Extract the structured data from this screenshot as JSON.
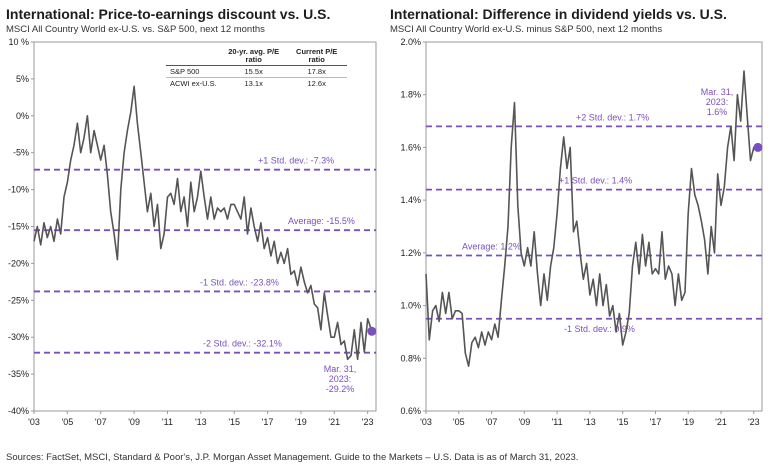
{
  "chart_data": [
    {
      "type": "line",
      "title": "International: Price-to-earnings discount vs. U.S.",
      "subtitle": "MSCI All Country World ex-U.S. vs. S&P 500, next 12 months",
      "ylim": [
        -40,
        10
      ],
      "yticks": [
        10,
        5,
        0,
        -5,
        -10,
        -15,
        -20,
        -25,
        -30,
        -35,
        -40
      ],
      "ytick_labels": [
        "10 %",
        "5%",
        "0%",
        "-5%",
        "-10%",
        "-15%",
        "-20%",
        "-25%",
        "-30%",
        "-35%",
        "-40%"
      ],
      "xlim": [
        2003,
        2023.5
      ],
      "xticks": [
        2003,
        2005,
        2007,
        2009,
        2011,
        2013,
        2015,
        2017,
        2019,
        2021,
        2023
      ],
      "xtick_labels": [
        "'03",
        "'05",
        "'07",
        "'09",
        "'11",
        "'13",
        "'15",
        "'17",
        "'19",
        "'21",
        "'23"
      ],
      "line_color": "#555555",
      "ref_color": "#7a4fc0",
      "reference_lines": [
        {
          "label": "+1 Std. dev.: -7.3%",
          "value": -7.3
        },
        {
          "label": "Average: -15.5%",
          "value": -15.5
        },
        {
          "label": "-1 Std. dev.: -23.8%",
          "value": -23.8
        },
        {
          "label": "-2 Std. dev.: -32.1%",
          "value": -32.1
        }
      ],
      "annotation": {
        "lines": [
          "Mar. 31,",
          "2023:",
          "-29.2%"
        ],
        "x": 2023.25,
        "y": -29.2
      },
      "table": {
        "headers": [
          "",
          "20-yr. avg. P/E ratio",
          "Current P/E ratio"
        ],
        "rows": [
          [
            "S&P 500",
            "15.5x",
            "17.8x"
          ],
          [
            "ACWI ex-U.S.",
            "13.1x",
            "12.6x"
          ]
        ]
      },
      "series": [
        {
          "x": [
            2003.0,
            2003.2,
            2003.4,
            2003.6,
            2003.8,
            2004.0,
            2004.2,
            2004.4,
            2004.6,
            2004.8,
            2005.0,
            2005.2,
            2005.4,
            2005.6,
            2005.8,
            2006.0,
            2006.2,
            2006.4,
            2006.6,
            2006.8,
            2007.0,
            2007.2,
            2007.4,
            2007.6,
            2007.8,
            2008.0,
            2008.2,
            2008.4,
            2008.6,
            2008.8,
            2009.0,
            2009.2,
            2009.4,
            2009.6,
            2009.8,
            2010.0,
            2010.2,
            2010.4,
            2010.6,
            2010.8,
            2011.0,
            2011.2,
            2011.4,
            2011.6,
            2011.8,
            2012.0,
            2012.2,
            2012.4,
            2012.6,
            2012.8,
            2013.0,
            2013.2,
            2013.4,
            2013.6,
            2013.8,
            2014.0,
            2014.2,
            2014.4,
            2014.6,
            2014.8,
            2015.0,
            2015.2,
            2015.4,
            2015.6,
            2015.8,
            2016.0,
            2016.2,
            2016.4,
            2016.6,
            2016.8,
            2017.0,
            2017.2,
            2017.4,
            2017.6,
            2017.8,
            2018.0,
            2018.2,
            2018.4,
            2018.6,
            2018.8,
            2019.0,
            2019.2,
            2019.4,
            2019.6,
            2019.8,
            2020.0,
            2020.2,
            2020.4,
            2020.6,
            2020.8,
            2021.0,
            2021.2,
            2021.4,
            2021.6,
            2021.8,
            2022.0,
            2022.2,
            2022.4,
            2022.6,
            2022.8,
            2023.0,
            2023.25
          ],
          "y": [
            -17,
            -15,
            -17.5,
            -14.5,
            -16.5,
            -15,
            -17,
            -14,
            -16,
            -11,
            -9,
            -6,
            -4,
            -1,
            -5,
            -3,
            0,
            -5,
            -2,
            -4,
            -6,
            -4,
            -8,
            -13,
            -16,
            -19.5,
            -10,
            -5,
            -2,
            0.5,
            4,
            -1,
            -5,
            -9,
            -13,
            -10.5,
            -15,
            -12,
            -18,
            -16,
            -11,
            -10.5,
            -12,
            -8.5,
            -13,
            -11,
            -15,
            -9,
            -13,
            -11,
            -7.5,
            -11,
            -14,
            -11,
            -14,
            -12.5,
            -13,
            -12.5,
            -14,
            -12,
            -12,
            -13,
            -14,
            -11,
            -16,
            -12.5,
            -15,
            -17,
            -14.5,
            -18,
            -16.5,
            -19,
            -17,
            -20,
            -18.5,
            -20,
            -18,
            -21.5,
            -21,
            -23,
            -20.5,
            -22.5,
            -24,
            -23,
            -25.5,
            -26,
            -29,
            -24,
            -27,
            -30,
            -30,
            -28,
            -31,
            -30.5,
            -33,
            -32.5,
            -29,
            -33,
            -28,
            -32,
            -27.5,
            -29.2
          ]
        }
      ]
    },
    {
      "type": "line",
      "title": "International: Difference in dividend yields vs. U.S.",
      "subtitle": "MSCI All Country World ex-U.S. minus S&P 500, next 12 months",
      "ylim": [
        0.6,
        2.0
      ],
      "yticks": [
        2.0,
        1.8,
        1.6,
        1.4,
        1.2,
        1.0,
        0.8,
        0.6
      ],
      "ytick_labels": [
        "2.0%",
        "1.8%",
        "1.6%",
        "1.4%",
        "1.2%",
        "1.0%",
        "0.8%",
        "0.6%"
      ],
      "xlim": [
        2003,
        2023.5
      ],
      "xticks": [
        2003,
        2005,
        2007,
        2009,
        2011,
        2013,
        2015,
        2017,
        2019,
        2021,
        2023
      ],
      "xtick_labels": [
        "'03",
        "'05",
        "'07",
        "'09",
        "'11",
        "'13",
        "'15",
        "'17",
        "'19",
        "'21",
        "'23"
      ],
      "line_color": "#555555",
      "ref_color": "#7a4fc0",
      "reference_lines": [
        {
          "label": "+2 Std. dev.: 1.7%",
          "value": 1.68
        },
        {
          "label": "+1 Std. dev.: 1.4%",
          "value": 1.44
        },
        {
          "label": "Average: 1.2%",
          "value": 1.19
        },
        {
          "label": "-1 Std. dev.: 0.9%",
          "value": 0.95
        }
      ],
      "annotation": {
        "lines": [
          "Mar. 31,",
          "2023:",
          "1.6%"
        ],
        "x": 2023.25,
        "y": 1.6
      },
      "series": [
        {
          "x": [
            2003.0,
            2003.2,
            2003.4,
            2003.6,
            2003.8,
            2004.0,
            2004.2,
            2004.4,
            2004.6,
            2004.8,
            2005.0,
            2005.2,
            2005.4,
            2005.6,
            2005.8,
            2006.0,
            2006.2,
            2006.4,
            2006.6,
            2006.8,
            2007.0,
            2007.2,
            2007.4,
            2007.6,
            2007.8,
            2008.0,
            2008.2,
            2008.4,
            2008.6,
            2008.8,
            2009.0,
            2009.2,
            2009.4,
            2009.6,
            2009.8,
            2010.0,
            2010.2,
            2010.4,
            2010.6,
            2010.8,
            2011.0,
            2011.2,
            2011.4,
            2011.6,
            2011.8,
            2012.0,
            2012.2,
            2012.4,
            2012.6,
            2012.8,
            2013.0,
            2013.2,
            2013.4,
            2013.6,
            2013.8,
            2014.0,
            2014.2,
            2014.4,
            2014.6,
            2014.8,
            2015.0,
            2015.2,
            2015.4,
            2015.6,
            2015.8,
            2016.0,
            2016.2,
            2016.4,
            2016.6,
            2016.8,
            2017.0,
            2017.2,
            2017.4,
            2017.6,
            2017.8,
            2018.0,
            2018.2,
            2018.4,
            2018.6,
            2018.8,
            2019.0,
            2019.2,
            2019.4,
            2019.6,
            2019.8,
            2020.0,
            2020.2,
            2020.4,
            2020.6,
            2020.8,
            2021.0,
            2021.2,
            2021.4,
            2021.6,
            2021.8,
            2022.0,
            2022.2,
            2022.4,
            2022.6,
            2022.8,
            2023.0,
            2023.25
          ],
          "y": [
            1.12,
            0.87,
            0.98,
            1.0,
            0.94,
            1.05,
            0.97,
            1.05,
            0.95,
            0.98,
            0.98,
            0.97,
            0.82,
            0.77,
            0.86,
            0.88,
            0.84,
            0.9,
            0.85,
            0.9,
            0.87,
            0.93,
            0.88,
            1.02,
            1.15,
            1.3,
            1.6,
            1.77,
            1.38,
            1.2,
            1.15,
            1.22,
            1.15,
            1.28,
            1.12,
            1.0,
            1.12,
            1.02,
            1.15,
            1.22,
            1.35,
            1.52,
            1.64,
            1.52,
            1.6,
            1.28,
            1.32,
            1.2,
            1.1,
            1.16,
            1.04,
            1.1,
            1.0,
            1.12,
            1.0,
            1.08,
            0.96,
            1.0,
            0.9,
            0.97,
            0.85,
            0.9,
            0.97,
            1.15,
            1.24,
            1.12,
            1.27,
            1.15,
            1.24,
            1.12,
            1.14,
            1.12,
            1.28,
            1.1,
            1.15,
            1.12,
            1.0,
            1.12,
            1.02,
            1.05,
            1.35,
            1.52,
            1.42,
            1.38,
            1.32,
            1.25,
            1.12,
            1.3,
            1.2,
            1.5,
            1.38,
            1.45,
            1.6,
            1.68,
            1.55,
            1.8,
            1.7,
            1.89,
            1.72,
            1.55,
            1.6,
            1.6
          ]
        }
      ]
    }
  ],
  "source": "Sources: FactSet, MSCI, Standard & Poor's, J.P. Morgan Asset Management. Guide to the Markets – U.S. Data is as of March 31, 2023."
}
